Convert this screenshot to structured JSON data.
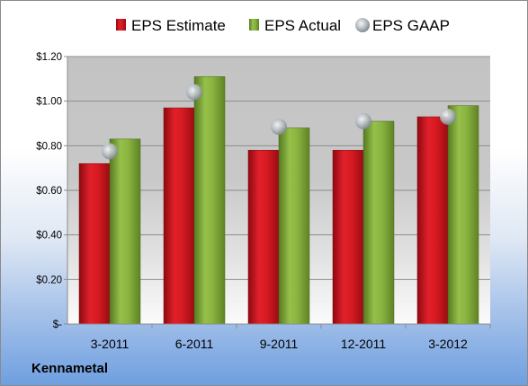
{
  "company": "Kennametal",
  "chart_data": {
    "type": "bar",
    "categories": [
      "3-2011",
      "6-2011",
      "9-2011",
      "12-2011",
      "3-2012"
    ],
    "series": [
      {
        "name": "EPS Estimate",
        "values": [
          0.72,
          0.97,
          0.78,
          0.78,
          0.93
        ],
        "color": "#c8141e"
      },
      {
        "name": "EPS Actual",
        "values": [
          0.83,
          1.11,
          0.88,
          0.91,
          0.98
        ],
        "color": "#7fa83a"
      },
      {
        "name": "EPS GAAP",
        "values": [
          0.775,
          1.04,
          0.885,
          0.91,
          0.93
        ],
        "color": "#b4bac2",
        "marker": "circle"
      }
    ],
    "ylim": [
      0,
      1.2
    ],
    "yticks": [
      0,
      0.2,
      0.4,
      0.6,
      0.8,
      1.0,
      1.2
    ],
    "ytick_labels": [
      "$-",
      "$0.20",
      "$0.40",
      "$0.60",
      "$0.80",
      "$1.00",
      "$1.20"
    ],
    "grid": true,
    "legend": "top-center"
  }
}
